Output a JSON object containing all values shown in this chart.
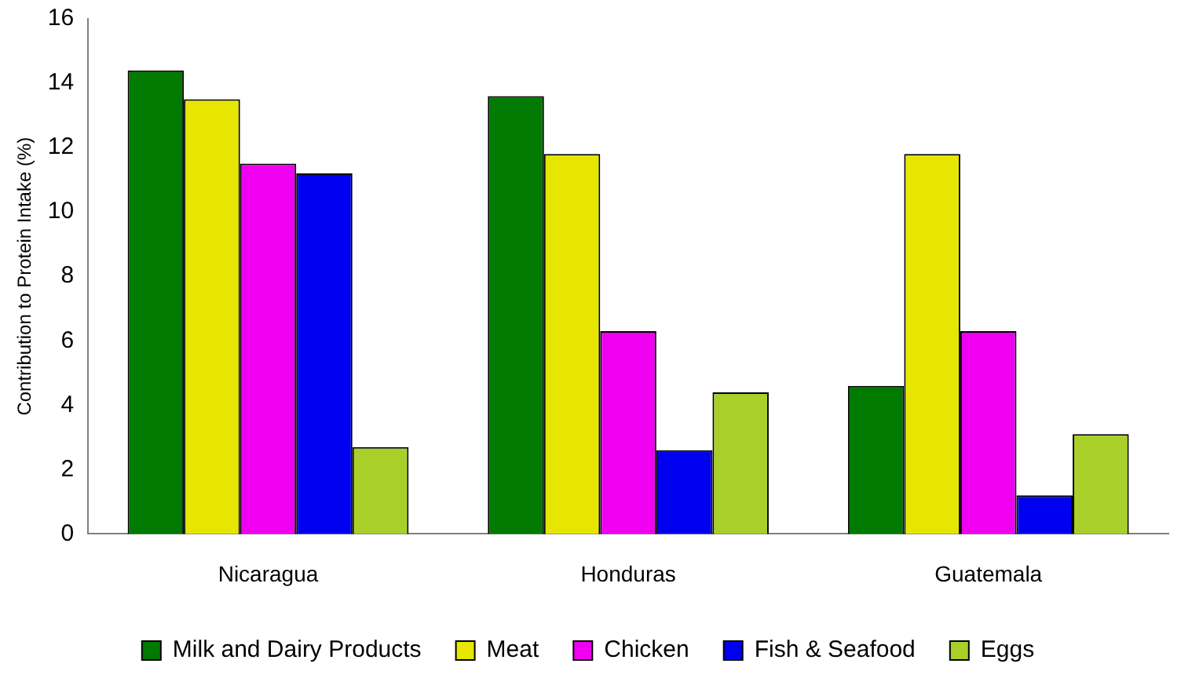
{
  "chart_data": {
    "type": "bar",
    "ylabel": "Contribution to Protein Intake (%)",
    "categories": [
      "Nicaragua",
      "Honduras",
      "Guatemala"
    ],
    "series": [
      {
        "name": "Milk and Dairy Products",
        "color": "#007a00",
        "values": [
          14.4,
          13.6,
          4.6
        ]
      },
      {
        "name": "Meat",
        "color": "#e6e600",
        "values": [
          13.5,
          11.8,
          11.8
        ]
      },
      {
        "name": "Chicken",
        "color": "#f000f0",
        "values": [
          11.5,
          6.3,
          6.3
        ]
      },
      {
        "name": "Fish & Seafood",
        "color": "#0000f0",
        "values": [
          11.2,
          2.6,
          1.2
        ]
      },
      {
        "name": "Eggs",
        "color": "#a8d028",
        "values": [
          2.7,
          4.4,
          3.1
        ]
      }
    ],
    "ylim": [
      0,
      16
    ],
    "yticks": [
      0,
      2,
      4,
      6,
      8,
      10,
      12,
      14,
      16
    ],
    "grid": false,
    "legend": "bottom"
  }
}
